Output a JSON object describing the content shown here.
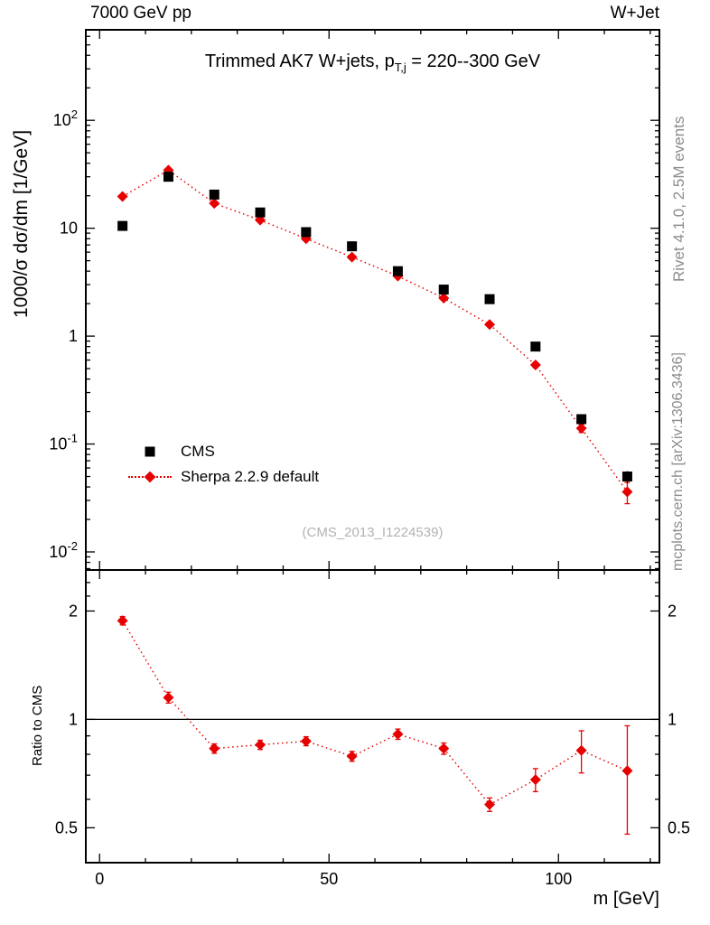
{
  "header": {
    "left": "7000 GeV pp",
    "right": "W+Jet"
  },
  "right_margin": {
    "top_note": "Rivet 4.1.0,  2.5M events",
    "bottom_note": "mcplots.cern.ch [arXiv:1306.3436]"
  },
  "watermark": "(CMS_2013_I1224539)",
  "chart_data": {
    "type": "scatter",
    "title": "Trimmed AK7 W+jets, p_T,j = 220--300 GeV",
    "title_parts": {
      "pre": "Trimmed AK7 W+jets, p",
      "sub": "T,j",
      "post": " = 220--300 GeV"
    },
    "xlabel": "m [GeV]",
    "ylabel": "1000/σ  dσ/dm [1/GeV]",
    "ratio_ylabel": "Ratio to CMS",
    "xlim": [
      -3,
      122
    ],
    "ylim": [
      0.0068,
      690
    ],
    "ratio_ylim": [
      0.4,
      2.6
    ],
    "x_ticks": [
      {
        "value": 0,
        "label": "0"
      },
      {
        "value": 50,
        "label": "50"
      },
      {
        "value": 100,
        "label": "100"
      }
    ],
    "x_minor_step": 10,
    "y_ticks": [
      {
        "value": 0.01,
        "mant": "10",
        "exp": "-2"
      },
      {
        "value": 0.1,
        "mant": "10",
        "exp": "-1"
      },
      {
        "value": 1,
        "mant": "1",
        "exp": ""
      },
      {
        "value": 10,
        "mant": "10",
        "exp": ""
      },
      {
        "value": 100,
        "mant": "10",
        "exp": "2"
      }
    ],
    "ratio_ticks": [
      {
        "value": 0.5,
        "label": "0.5"
      },
      {
        "value": 1,
        "label": "1"
      },
      {
        "value": 2,
        "label": "2"
      }
    ],
    "ratio_minor_ticks": [
      0.6,
      0.7,
      0.8,
      0.9,
      2.2,
      2.4
    ],
    "x": [
      5,
      15,
      25,
      35,
      45,
      55,
      65,
      75,
      85,
      95,
      105,
      115
    ],
    "series": [
      {
        "name": "CMS",
        "marker": "square",
        "color": "#000000",
        "values": [
          10.5,
          30,
          20.5,
          14,
          9.2,
          6.8,
          4.0,
          2.7,
          2.2,
          0.8,
          0.17,
          0.05
        ],
        "yerr": [
          0.6,
          1.5,
          1.0,
          0.7,
          0.5,
          0.35,
          0.22,
          0.16,
          0.13,
          0.06,
          0.015,
          0.006
        ]
      },
      {
        "name": "Sherpa 2.2.9 default",
        "marker": "diamond",
        "color": "#e60000",
        "line": "dotted",
        "values": [
          19.7,
          34.5,
          17.0,
          11.9,
          8.0,
          5.4,
          3.6,
          2.25,
          1.28,
          0.54,
          0.14,
          0.036
        ],
        "yerr": [
          0.5,
          0.7,
          0.35,
          0.25,
          0.18,
          0.13,
          0.1,
          0.08,
          0.05,
          0.03,
          0.012,
          0.008
        ]
      }
    ],
    "ratio": {
      "reference": "CMS",
      "values": [
        1.88,
        1.15,
        0.83,
        0.85,
        0.87,
        0.79,
        0.91,
        0.83,
        0.58,
        0.68,
        0.82,
        0.72
      ],
      "yerr": [
        0.05,
        0.04,
        0.025,
        0.025,
        0.025,
        0.025,
        0.03,
        0.03,
        0.025,
        0.05,
        0.11,
        0.24
      ]
    }
  }
}
